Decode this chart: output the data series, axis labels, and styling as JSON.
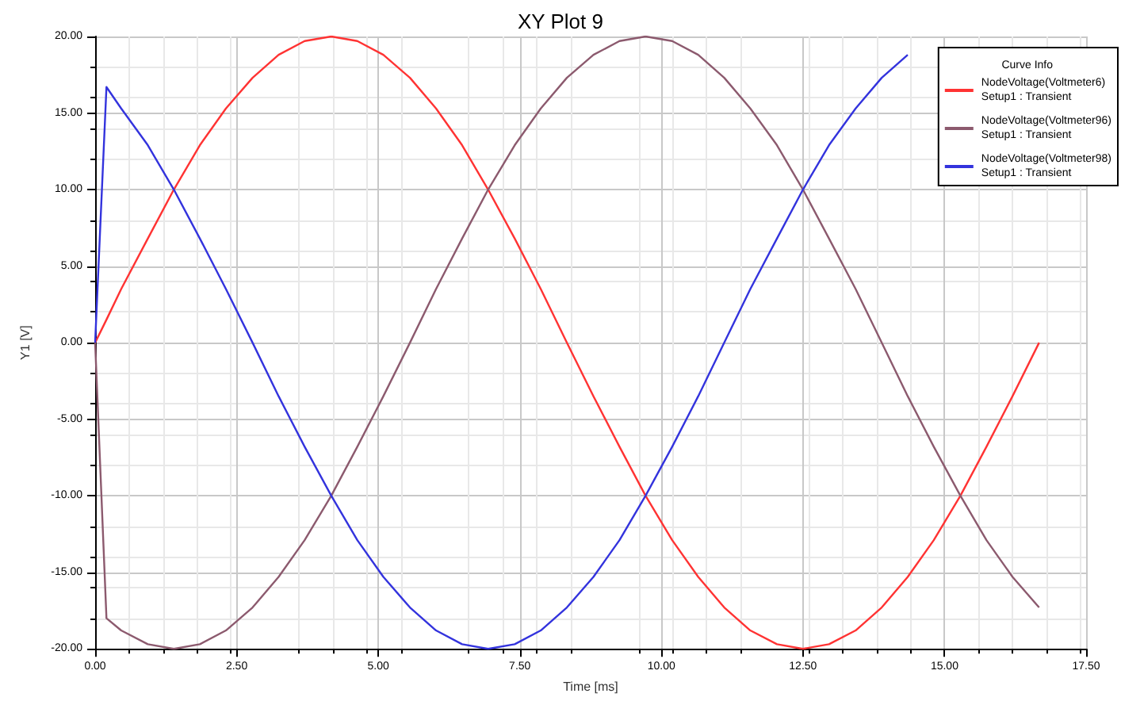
{
  "chart_data": {
    "type": "line",
    "title": "XY Plot 9",
    "xlabel": "Time [ms]",
    "ylabel": "Y1 [V]",
    "legend_title": "Curve Info",
    "x": [
      0,
      0.2,
      0.46,
      0.93,
      1.39,
      1.85,
      2.31,
      2.78,
      3.24,
      3.7,
      4.17,
      4.63,
      5.09,
      5.56,
      6.02,
      6.48,
      6.94,
      7.41,
      7.87,
      8.33,
      8.8,
      9.26,
      9.72,
      10.19,
      10.65,
      11.11,
      11.57,
      12.04,
      12.5,
      12.96,
      13.43,
      13.89,
      14.35,
      14.81,
      15.28,
      15.74,
      16.2,
      16.67
    ],
    "series": [
      {
        "name": "NodeVoltage(Voltmeter6)\nSetup1 : Transient",
        "color": "#ff3333",
        "values": [
          0,
          1.5,
          3.5,
          6.8,
          10,
          12.9,
          15.3,
          17.3,
          18.8,
          19.7,
          20,
          19.7,
          18.8,
          17.3,
          15.3,
          12.9,
          10,
          6.8,
          3.5,
          0,
          -3.5,
          -6.8,
          -10,
          -12.9,
          -15.3,
          -17.3,
          -18.8,
          -19.7,
          -20,
          -19.7,
          -18.8,
          -17.3,
          -15.3,
          -12.9,
          -10,
          -6.8,
          -3.5,
          0
        ]
      },
      {
        "name": "NodeVoltage(Voltmeter96)\nSetup1 : Transient",
        "color": "#8c5a6e",
        "values": [
          0,
          -18,
          -18.8,
          -19.7,
          -20,
          -19.7,
          -18.8,
          -17.3,
          -15.3,
          -12.9,
          -10,
          -6.8,
          -3.5,
          0,
          3.5,
          6.8,
          10,
          12.9,
          15.3,
          17.3,
          18.8,
          19.7,
          20,
          19.7,
          18.8,
          17.3,
          15.3,
          12.9,
          10,
          6.8,
          3.5,
          0,
          -3.5,
          -6.8,
          -10,
          -12.9,
          -15.3,
          -17.3
        ]
      },
      {
        "name": "NodeVoltage(Voltmeter98)\nSetup1 : Transient",
        "color": "#3333dd",
        "values": [
          0,
          16.7,
          15.3,
          12.9,
          10,
          6.8,
          3.5,
          0,
          -3.5,
          -6.8,
          -10,
          -12.9,
          -15.3,
          -17.3,
          -18.8,
          -19.7,
          -20,
          -19.7,
          -18.8,
          -17.3,
          -15.3,
          -12.9,
          -10,
          -6.8,
          -3.5,
          0,
          3.5,
          6.8,
          10,
          12.9,
          15.3,
          17.3,
          18.8,
          null,
          null,
          null,
          null,
          null
        ]
      }
    ],
    "xlim": [
      0,
      17.5
    ],
    "xticks": [
      {
        "value": 0,
        "label": "0.00"
      },
      {
        "value": 2.5,
        "label": "2.50"
      },
      {
        "value": 5,
        "label": "5.00"
      },
      {
        "value": 7.5,
        "label": "7.50"
      },
      {
        "value": 10,
        "label": "10.00"
      },
      {
        "value": 12.5,
        "label": "12.50"
      },
      {
        "value": 15,
        "label": "15.00"
      },
      {
        "value": 17.5,
        "label": "17.50"
      }
    ],
    "ylim": [
      -20,
      20
    ],
    "yticks": [
      {
        "value": -20,
        "label": "-20.00"
      },
      {
        "value": -15,
        "label": "-15.00"
      },
      {
        "value": -10,
        "label": "-10.00"
      },
      {
        "value": -5,
        "label": "-5.00"
      },
      {
        "value": 0,
        "label": "0.00"
      },
      {
        "value": 5,
        "label": "5.00"
      },
      {
        "value": 10,
        "label": "10.00"
      },
      {
        "value": 15,
        "label": "15.00"
      },
      {
        "value": 20,
        "label": "20.00"
      }
    ],
    "grid": true,
    "legend": "top right",
    "marker": "none",
    "line_style": "solid"
  }
}
